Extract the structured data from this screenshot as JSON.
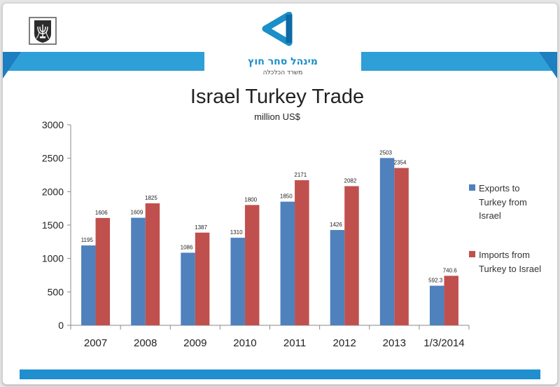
{
  "slide": {
    "header": {
      "organization_hebrew": "מינהל סחר חוץ",
      "ministry_hebrew": "משרד הכלכלה"
    },
    "colors": {
      "accent": "#2f9fd8",
      "accent_dark": "#1d7fc0"
    }
  },
  "chart_data": {
    "type": "bar",
    "title": "Israel Turkey Trade",
    "subtitle": "million US$",
    "xlabel": "",
    "ylabel": "",
    "ylim": [
      0,
      3000
    ],
    "yticks": [
      0,
      500,
      1000,
      1500,
      2000,
      2500,
      3000
    ],
    "grid": false,
    "legend_position": "right",
    "categories": [
      "2007",
      "2008",
      "2009",
      "2010",
      "2011",
      "2012",
      "2013",
      "1/3/2014"
    ],
    "series": [
      {
        "name": "Exports to Turkey from Israel",
        "color": "#4f81bd",
        "values": [
          1195,
          1609,
          1086,
          1310,
          1850,
          1426,
          2503,
          592.3
        ],
        "labels": [
          "1195",
          "1609",
          "1086",
          "1310",
          "1850",
          "1426",
          "2503",
          "592.3"
        ]
      },
      {
        "name": "Imports from Turkey to Israel",
        "color": "#c0504d",
        "values": [
          1606,
          1825,
          1387,
          1800,
          2171,
          2082,
          2354,
          740.6
        ],
        "labels": [
          "1606",
          "1825",
          "1387",
          "1800",
          "2171",
          "2082",
          "2354",
          "740.6"
        ]
      }
    ]
  }
}
